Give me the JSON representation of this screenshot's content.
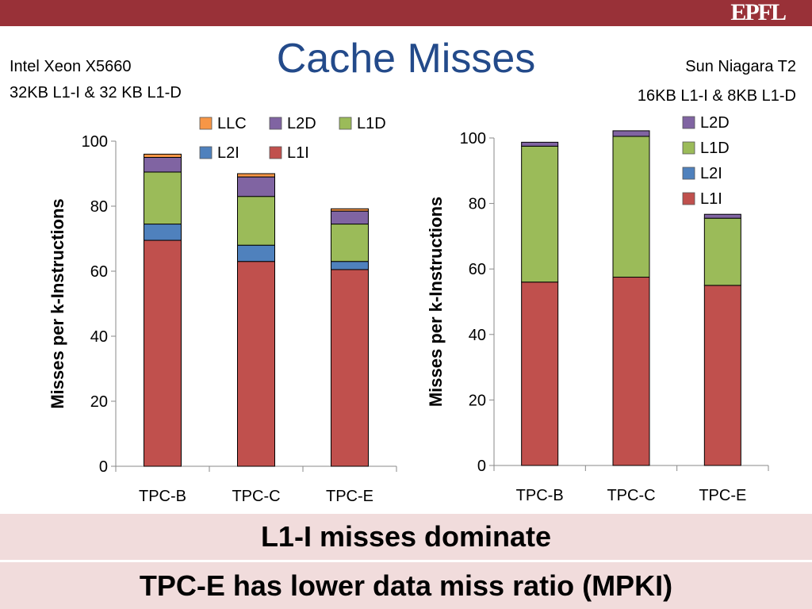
{
  "header": {
    "logo_text": "EPFL"
  },
  "slide": {
    "title": "Cache Misses",
    "left_system": {
      "line1": "Intel Xeon X5660",
      "line2": "32KB L1-I & 32 KB L1-D"
    },
    "right_system": {
      "line1": "Sun Niagara T2",
      "line2": "16KB L1-I & 8KB L1-D"
    },
    "takeaway1": "L1-I misses dominate",
    "takeaway2": "TPC-E has lower data miss ratio (MPKI)"
  },
  "colors": {
    "L1I": "#c0504d",
    "L2I": "#4f81bd",
    "L1D": "#9bbb59",
    "L2D": "#8064a2",
    "LLC": "#f79646",
    "band": "#f1dcdc",
    "title": "#234a8a",
    "topbar": "#993138"
  },
  "chart_data": [
    {
      "type": "bar",
      "stacked": true,
      "categories": [
        "TPC-B",
        "TPC-C",
        "TPC-E"
      ],
      "ylabel": "Misses per k-Instructions",
      "ylim": [
        0,
        100
      ],
      "yticks": [
        0,
        20,
        40,
        60,
        80,
        100
      ],
      "legend_position": "top-right",
      "legend": [
        "LLC",
        "L2D",
        "L1D",
        "L2I",
        "L1I"
      ],
      "series": [
        {
          "name": "L1I",
          "values": [
            69.5,
            63,
            60.5
          ]
        },
        {
          "name": "L2I",
          "values": [
            5,
            5,
            2.5
          ]
        },
        {
          "name": "L1D",
          "values": [
            16,
            15,
            11.5
          ]
        },
        {
          "name": "L2D",
          "values": [
            4.5,
            6,
            4
          ]
        },
        {
          "name": "LLC",
          "values": [
            1,
            1,
            0.7
          ]
        }
      ]
    },
    {
      "type": "bar",
      "stacked": true,
      "categories": [
        "TPC-B",
        "TPC-C",
        "TPC-E"
      ],
      "ylabel": "Misses per k-Instructions",
      "ylim": [
        0,
        100
      ],
      "yticks": [
        0,
        20,
        40,
        60,
        80,
        100
      ],
      "legend_position": "top-right",
      "legend": [
        "L2D",
        "L1D",
        "L2I",
        "L1I"
      ],
      "series": [
        {
          "name": "L1I",
          "values": [
            56,
            57.5,
            55
          ]
        },
        {
          "name": "L2I",
          "values": [
            0,
            0,
            0
          ]
        },
        {
          "name": "L1D",
          "values": [
            41.5,
            43,
            20.5
          ]
        },
        {
          "name": "L2D",
          "values": [
            1.2,
            1.7,
            1.2
          ]
        }
      ]
    }
  ]
}
